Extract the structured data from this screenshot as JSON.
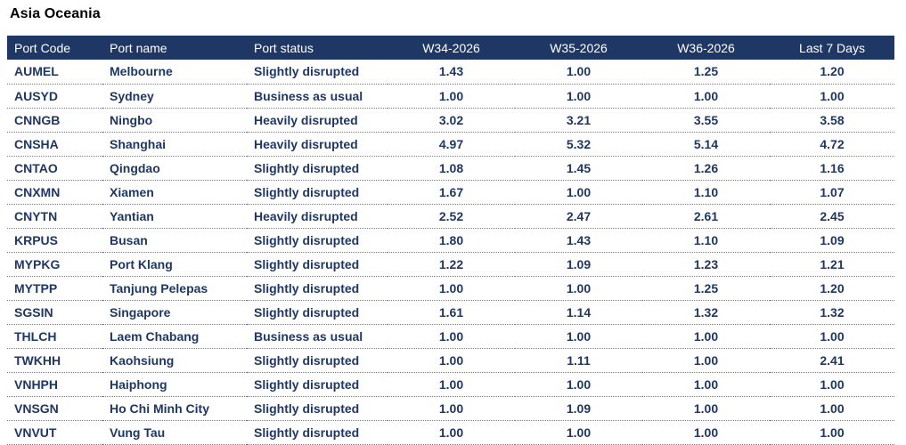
{
  "region_title": "Asia Oceania",
  "table": {
    "headers": [
      "Port Code",
      "Port name",
      "Port status",
      "W34-2026",
      "W35-2026",
      "W36-2026",
      "Last 7 Days"
    ],
    "rows": [
      {
        "code": "AUMEL",
        "name": "Melbourne",
        "status": "Slightly disrupted",
        "w34": "1.43",
        "w35": "1.00",
        "w36": "1.25",
        "last7": "1.20"
      },
      {
        "code": "AUSYD",
        "name": "Sydney",
        "status": "Business as usual",
        "w34": "1.00",
        "w35": "1.00",
        "w36": "1.00",
        "last7": "1.00"
      },
      {
        "code": "CNNGB",
        "name": "Ningbo",
        "status": "Heavily disrupted",
        "w34": "3.02",
        "w35": "3.21",
        "w36": "3.55",
        "last7": "3.58"
      },
      {
        "code": "CNSHA",
        "name": "Shanghai",
        "status": "Heavily disrupted",
        "w34": "4.97",
        "w35": "5.32",
        "w36": "5.14",
        "last7": "4.72"
      },
      {
        "code": "CNTAO",
        "name": "Qingdao",
        "status": "Slightly disrupted",
        "w34": "1.08",
        "w35": "1.45",
        "w36": "1.26",
        "last7": "1.16"
      },
      {
        "code": "CNXMN",
        "name": "Xiamen",
        "status": "Slightly disrupted",
        "w34": "1.67",
        "w35": "1.00",
        "w36": "1.10",
        "last7": "1.07"
      },
      {
        "code": "CNYTN",
        "name": "Yantian",
        "status": "Heavily disrupted",
        "w34": "2.52",
        "w35": "2.47",
        "w36": "2.61",
        "last7": "2.45"
      },
      {
        "code": "KRPUS",
        "name": "Busan",
        "status": "Slightly disrupted",
        "w34": "1.80",
        "w35": "1.43",
        "w36": "1.10",
        "last7": "1.09"
      },
      {
        "code": "MYPKG",
        "name": "Port Klang",
        "status": "Slightly disrupted",
        "w34": "1.22",
        "w35": "1.09",
        "w36": "1.23",
        "last7": "1.21"
      },
      {
        "code": "MYTPP",
        "name": "Tanjung Pelepas",
        "status": "Slightly disrupted",
        "w34": "1.00",
        "w35": "1.00",
        "w36": "1.25",
        "last7": "1.20"
      },
      {
        "code": "SGSIN",
        "name": "Singapore",
        "status": "Slightly disrupted",
        "w34": "1.61",
        "w35": "1.14",
        "w36": "1.32",
        "last7": "1.32"
      },
      {
        "code": "THLCH",
        "name": "Laem Chabang",
        "status": "Business as usual",
        "w34": "1.00",
        "w35": "1.00",
        "w36": "1.00",
        "last7": "1.00"
      },
      {
        "code": "TWKHH",
        "name": "Kaohsiung",
        "status": "Slightly disrupted",
        "w34": "1.00",
        "w35": "1.11",
        "w36": "1.00",
        "last7": "2.41"
      },
      {
        "code": "VNHPH",
        "name": "Haiphong",
        "status": "Slightly disrupted",
        "w34": "1.00",
        "w35": "1.00",
        "w36": "1.00",
        "last7": "1.00"
      },
      {
        "code": "VNSGN",
        "name": "Ho Chi Minh City",
        "status": "Slightly disrupted",
        "w34": "1.00",
        "w35": "1.09",
        "w36": "1.00",
        "last7": "1.00"
      },
      {
        "code": "VNVUT",
        "name": "Vung Tau",
        "status": "Slightly disrupted",
        "w34": "1.00",
        "w35": "1.00",
        "w36": "1.00",
        "last7": "1.00"
      }
    ]
  },
  "colors": {
    "header_bg": "#1f3764",
    "text": "#1f3764"
  }
}
